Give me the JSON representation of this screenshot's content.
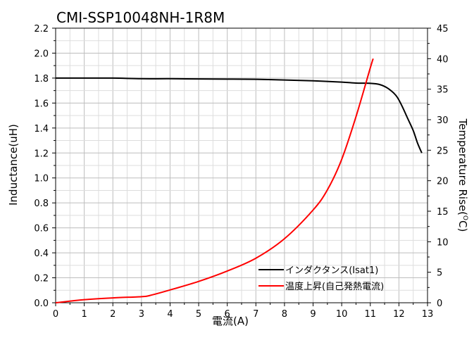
{
  "chart_data": {
    "type": "line",
    "title": "CMI-SSP10048NH-1R8M",
    "xlabel": "電流(A)",
    "ylabel_left": "Inductance(uH)",
    "ylabel_right_main": "Temperature Rise(",
    "ylabel_right_sup": "O",
    "ylabel_right_end": "C)",
    "xlim": [
      0,
      13
    ],
    "ylim_left": [
      0,
      2.2
    ],
    "ylim_right": [
      0,
      45
    ],
    "x_ticks": [
      "0",
      "1",
      "2",
      "3",
      "4",
      "5",
      "6",
      "7",
      "8",
      "9",
      "10",
      "11",
      "12",
      "13"
    ],
    "y_left_ticks": [
      "0.0",
      "0.2",
      "0.4",
      "0.6",
      "0.8",
      "1.0",
      "1.2",
      "1.4",
      "1.6",
      "1.8",
      "2.0",
      "2.2"
    ],
    "y_right_ticks": [
      "0",
      "5",
      "10",
      "15",
      "20",
      "25",
      "30",
      "35",
      "40",
      "45"
    ],
    "grid": true,
    "legend_position": "bottom-right",
    "series": [
      {
        "name": "インダクタンス(Isat1)",
        "axis": "left",
        "color": "#000000",
        "x": [
          0,
          1,
          2,
          3,
          4,
          5,
          6,
          7,
          8,
          9,
          10,
          10.5,
          11,
          11.3,
          11.6,
          11.9,
          12.1,
          12.3,
          12.5,
          12.65,
          12.8
        ],
        "y": [
          1.8,
          1.8,
          1.8,
          1.795,
          1.795,
          1.793,
          1.792,
          1.79,
          1.785,
          1.778,
          1.768,
          1.76,
          1.758,
          1.75,
          1.72,
          1.66,
          1.58,
          1.48,
          1.38,
          1.28,
          1.2
        ]
      },
      {
        "name": "温度上昇(自己発熱電流)",
        "axis": "right",
        "color": "#ff0000",
        "x": [
          0,
          1,
          2,
          3,
          3.3,
          4,
          5,
          6,
          7,
          8,
          9,
          9.5,
          10,
          10.5,
          11,
          11.1
        ],
        "y": [
          0,
          0.5,
          0.8,
          1.0,
          1.2,
          2.1,
          3.5,
          5.2,
          7.3,
          10.5,
          15.2,
          18.5,
          23.5,
          30.5,
          38.5,
          40.0
        ]
      }
    ]
  }
}
